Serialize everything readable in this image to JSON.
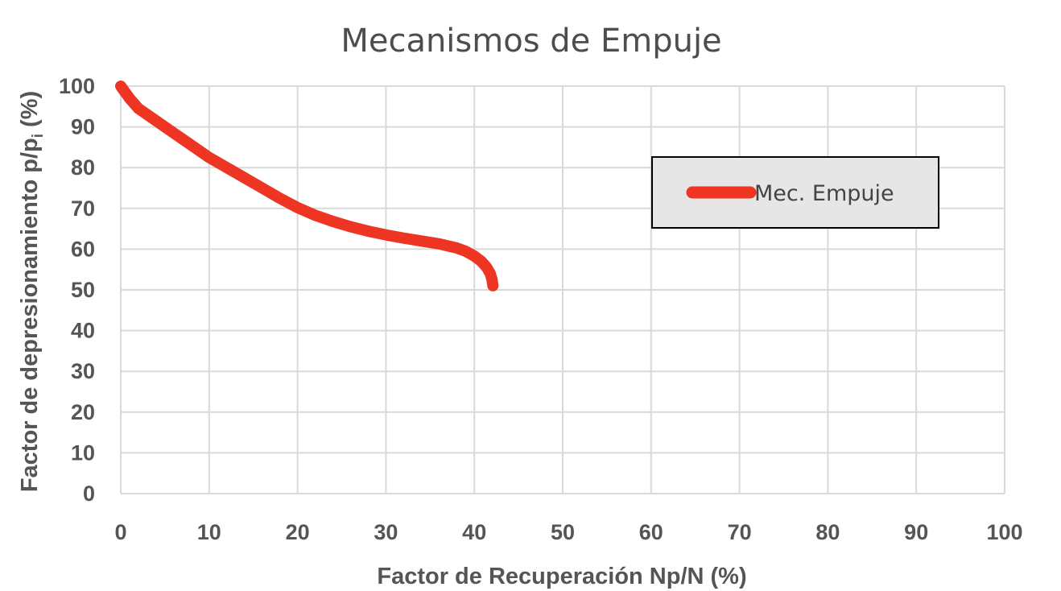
{
  "chart_data": {
    "type": "line",
    "title": "Mecanismos de Empuje",
    "xlabel": "Factor de Recuperación Np/N (%)",
    "ylabel_main": "Factor de depresionamiento p/p",
    "ylabel_sub": "i",
    "ylabel_tail": " (%)",
    "xlim": [
      0,
      100
    ],
    "ylim": [
      0,
      100
    ],
    "x_ticks": [
      "0",
      "10",
      "20",
      "30",
      "40",
      "50",
      "60",
      "70",
      "80",
      "90",
      "100"
    ],
    "y_ticks": [
      "0",
      "10",
      "20",
      "30",
      "40",
      "50",
      "60",
      "70",
      "80",
      "90",
      "100"
    ],
    "grid": true,
    "legend_position": "top-right",
    "series": [
      {
        "name": "Mec. Empuje",
        "color": "#ee3524",
        "x": [
          0,
          0.5,
          1,
          2,
          4,
          6,
          8,
          10,
          12,
          14,
          16,
          18,
          20,
          22,
          24,
          26,
          28,
          30,
          32,
          34,
          36,
          38,
          39,
          40,
          40.8,
          41.4,
          41.8,
          42,
          42.1
        ],
        "y": [
          100,
          98.5,
          97,
          94.5,
          91.5,
          88.5,
          85.5,
          82.5,
          80,
          77.5,
          75,
          72.5,
          70.2,
          68.3,
          66.8,
          65.5,
          64.4,
          63.5,
          62.7,
          62,
          61.3,
          60.3,
          59.5,
          58.3,
          57,
          55.5,
          54,
          52.5,
          51
        ]
      }
    ]
  }
}
